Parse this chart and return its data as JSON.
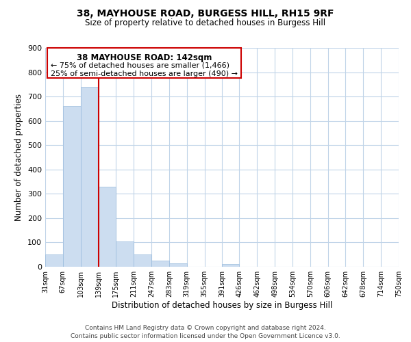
{
  "title1": "38, MAYHOUSE ROAD, BURGESS HILL, RH15 9RF",
  "title2": "Size of property relative to detached houses in Burgess Hill",
  "xlabel": "Distribution of detached houses by size in Burgess Hill",
  "ylabel": "Number of detached properties",
  "bar_edges": [
    31,
    67,
    103,
    139,
    175,
    211,
    247,
    283,
    319,
    355,
    391,
    426,
    462,
    498,
    534,
    570,
    606,
    642,
    678,
    714,
    750
  ],
  "bar_heights": [
    50,
    660,
    740,
    330,
    105,
    50,
    25,
    15,
    0,
    0,
    10,
    0,
    0,
    0,
    0,
    0,
    0,
    0,
    0,
    0
  ],
  "bar_color": "#ccddf0",
  "bar_edgecolor": "#99bbdd",
  "property_line_x": 139,
  "property_line_color": "#cc0000",
  "ylim": [
    0,
    900
  ],
  "yticks": [
    0,
    100,
    200,
    300,
    400,
    500,
    600,
    700,
    800,
    900
  ],
  "annotation_title": "38 MAYHOUSE ROAD: 142sqm",
  "annotation_line1": "← 75% of detached houses are smaller (1,466)",
  "annotation_line2": "25% of semi-detached houses are larger (490) →",
  "footer1": "Contains HM Land Registry data © Crown copyright and database right 2024.",
  "footer2": "Contains public sector information licensed under the Open Government Licence v3.0.",
  "bg_color": "#ffffff",
  "grid_color": "#c0d4e8"
}
